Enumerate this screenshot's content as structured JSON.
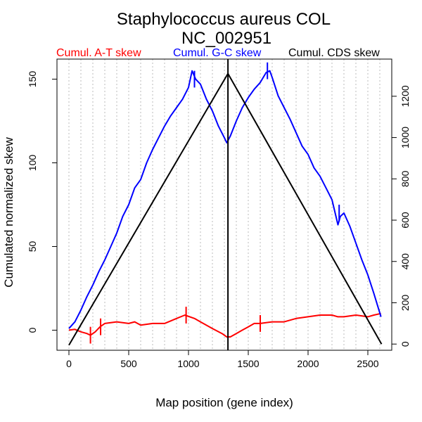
{
  "chart_data": {
    "type": "line",
    "title": "Staphylococcus aureus COL",
    "subtitle": "NC_002951",
    "xlabel": "Map position (gene index)",
    "ylabel": "Cumulated normalized skew",
    "xlim": [
      -100,
      2700
    ],
    "ylim": [
      -12,
      162
    ],
    "y2lim": [
      -30,
      1380
    ],
    "x_ticks": [
      0,
      500,
      1000,
      1500,
      2000,
      2500
    ],
    "y_ticks": [
      0,
      50,
      100,
      150
    ],
    "y2_ticks": [
      0,
      200,
      400,
      600,
      800,
      1000,
      1200
    ],
    "x_gridlines": [
      0,
      100,
      200,
      300,
      400,
      500,
      600,
      700,
      800,
      900,
      1000,
      1100,
      1200,
      1300,
      1400,
      1500,
      1600,
      1700,
      1800,
      1900,
      2000,
      2100,
      2200,
      2300,
      2400,
      2500,
      2600
    ],
    "legend": [
      "Cumul. A-T skew",
      "Cumul. G-C skew",
      "Cumul. CDS skew"
    ],
    "colors": {
      "at": "#ff0000",
      "gc": "#0000ff",
      "cds": "#000000",
      "grid": "#bbbbbb"
    },
    "series": [
      {
        "name": "Cumul. A-T skew",
        "color": "#ff0000",
        "points": [
          [
            0,
            0
          ],
          [
            50,
            0.5
          ],
          [
            100,
            -1
          ],
          [
            150,
            -2
          ],
          [
            180,
            -3
          ],
          [
            220,
            -1
          ],
          [
            260,
            2
          ],
          [
            300,
            4
          ],
          [
            400,
            5
          ],
          [
            500,
            4
          ],
          [
            550,
            5
          ],
          [
            600,
            3
          ],
          [
            700,
            4
          ],
          [
            800,
            4
          ],
          [
            900,
            7
          ],
          [
            970,
            9
          ],
          [
            1050,
            7
          ],
          [
            1100,
            5
          ],
          [
            1200,
            1
          ],
          [
            1280,
            -2
          ],
          [
            1320,
            -4
          ],
          [
            1350,
            -4
          ],
          [
            1400,
            -2
          ],
          [
            1450,
            0
          ],
          [
            1500,
            2
          ],
          [
            1550,
            4
          ],
          [
            1600,
            4
          ],
          [
            1700,
            5
          ],
          [
            1800,
            5
          ],
          [
            1900,
            7
          ],
          [
            2000,
            8
          ],
          [
            2100,
            9
          ],
          [
            2200,
            9
          ],
          [
            2250,
            8
          ],
          [
            2300,
            8
          ],
          [
            2400,
            9
          ],
          [
            2500,
            8
          ],
          [
            2550,
            9
          ],
          [
            2610,
            10
          ]
        ]
      },
      {
        "name": "Cumul. G-C skew",
        "color": "#0000ff",
        "points": [
          [
            0,
            1
          ],
          [
            50,
            5
          ],
          [
            100,
            12
          ],
          [
            150,
            20
          ],
          [
            200,
            27
          ],
          [
            250,
            35
          ],
          [
            300,
            42
          ],
          [
            350,
            50
          ],
          [
            400,
            58
          ],
          [
            450,
            68
          ],
          [
            500,
            75
          ],
          [
            550,
            85
          ],
          [
            600,
            90
          ],
          [
            650,
            100
          ],
          [
            700,
            108
          ],
          [
            750,
            115
          ],
          [
            800,
            122
          ],
          [
            850,
            128
          ],
          [
            900,
            133
          ],
          [
            950,
            138
          ],
          [
            1000,
            145
          ],
          [
            1030,
            155
          ],
          [
            1060,
            150
          ],
          [
            1100,
            147
          ],
          [
            1150,
            138
          ],
          [
            1200,
            131
          ],
          [
            1250,
            122
          ],
          [
            1300,
            115
          ],
          [
            1320,
            112
          ],
          [
            1350,
            116
          ],
          [
            1400,
            125
          ],
          [
            1450,
            133
          ],
          [
            1500,
            139
          ],
          [
            1550,
            144
          ],
          [
            1600,
            148
          ],
          [
            1650,
            154
          ],
          [
            1680,
            155
          ],
          [
            1700,
            151
          ],
          [
            1750,
            140
          ],
          [
            1800,
            133
          ],
          [
            1850,
            126
          ],
          [
            1900,
            118
          ],
          [
            1950,
            110
          ],
          [
            2000,
            105
          ],
          [
            2050,
            97
          ],
          [
            2100,
            92
          ],
          [
            2150,
            85
          ],
          [
            2200,
            78
          ],
          [
            2250,
            63
          ],
          [
            2270,
            68
          ],
          [
            2300,
            70
          ],
          [
            2350,
            62
          ],
          [
            2400,
            52
          ],
          [
            2450,
            42
          ],
          [
            2500,
            33
          ],
          [
            2550,
            22
          ],
          [
            2610,
            8
          ]
        ]
      },
      {
        "name": "Cumul. CDS skew",
        "color": "#000000",
        "axis": "right",
        "points": [
          [
            0,
            -5
          ],
          [
            1330,
            1310
          ],
          [
            2615,
            0
          ]
        ]
      }
    ],
    "markers": [
      {
        "series": "Cumul. G-C skew",
        "x": 1050,
        "y": 150,
        "len": 10
      },
      {
        "series": "Cumul. G-C skew",
        "x": 1660,
        "y": 155,
        "len": 10
      },
      {
        "series": "Cumul. G-C skew",
        "x": 2260,
        "y": 70,
        "len": 10
      },
      {
        "series": "Cumul. A-T skew",
        "x": 180,
        "y": -3,
        "len": 10
      },
      {
        "series": "Cumul. A-T skew",
        "x": 265,
        "y": 2,
        "len": 10
      },
      {
        "series": "Cumul. A-T skew",
        "x": 980,
        "y": 9,
        "len": 10
      },
      {
        "series": "Cumul. A-T skew",
        "x": 1600,
        "y": 4,
        "len": 10
      }
    ],
    "vertical_line_x": 1330
  }
}
